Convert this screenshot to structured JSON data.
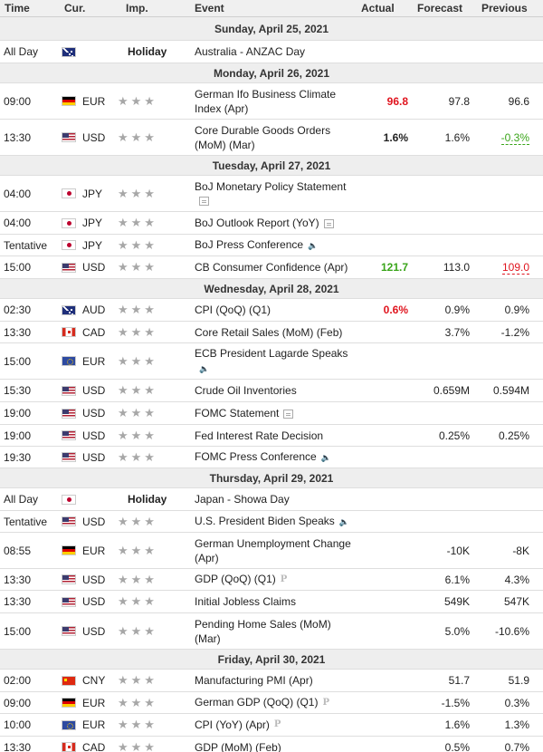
{
  "header": {
    "time": "Time",
    "currency": "Cur.",
    "importance": "Imp.",
    "event": "Event",
    "actual": "Actual",
    "forecast": "Forecast",
    "previous": "Previous"
  },
  "rows": [
    {
      "type": "day",
      "label": "Sunday, April 25, 2021",
      "h": 26
    },
    {
      "type": "event",
      "time": "All Day",
      "flag": "au",
      "cur": "",
      "holiday": "Holiday",
      "event": "Australia - ANZAC Day",
      "h": 25
    },
    {
      "type": "day",
      "label": "Monday, April 26, 2021",
      "h": 22
    },
    {
      "type": "event",
      "time": "09:00",
      "flag": "de",
      "cur": "EUR",
      "event": "German Ifo Business Climate Index (Apr)",
      "actual": "96.8",
      "actual_style": "red",
      "forecast": "97.8",
      "previous": "96.6",
      "h": 40
    },
    {
      "type": "event",
      "time": "13:30",
      "flag": "us",
      "cur": "USD",
      "event": "Core Durable Goods Orders (MoM) (Mar)",
      "actual": "1.6%",
      "forecast": "1.6%",
      "previous": "-0.3%",
      "previous_style": "u-green",
      "h": 40
    },
    {
      "type": "day",
      "label": "Tuesday, April 27, 2021",
      "h": 22
    },
    {
      "type": "event",
      "time": "04:00",
      "flag": "jp",
      "cur": "JPY",
      "event": "BoJ Monetary Policy Statement",
      "icon": "doc",
      "h": 40
    },
    {
      "type": "event",
      "time": "04:00",
      "flag": "jp",
      "cur": "JPY",
      "event": "BoJ Outlook Report (YoY)",
      "icon": "doc",
      "h": 25
    },
    {
      "type": "event",
      "time": "Tentative",
      "flag": "jp",
      "cur": "JPY",
      "event": "BoJ Press Conference",
      "icon": "speaker",
      "h": 24
    },
    {
      "type": "event",
      "time": "15:00",
      "flag": "us",
      "cur": "USD",
      "event": "CB Consumer Confidence (Apr)",
      "actual": "121.7",
      "actual_style": "green",
      "forecast": "113.0",
      "previous": "109.0",
      "previous_style": "u-red",
      "h": 25
    },
    {
      "type": "day",
      "label": "Wednesday, April 28, 2021",
      "h": 22
    },
    {
      "type": "event",
      "time": "02:30",
      "flag": "au",
      "cur": "AUD",
      "event": "CPI (QoQ) (Q1)",
      "actual": "0.6%",
      "actual_style": "red",
      "forecast": "0.9%",
      "previous": "0.9%",
      "h": 25
    },
    {
      "type": "event",
      "time": "13:30",
      "flag": "ca",
      "cur": "CAD",
      "event": "Core Retail Sales (MoM) (Feb)",
      "forecast": "3.7%",
      "previous": "-1.2%",
      "h": 24
    },
    {
      "type": "event",
      "time": "15:00",
      "flag": "eu",
      "cur": "EUR",
      "event": "ECB President Lagarde Speaks",
      "icon": "speaker",
      "h": 40
    },
    {
      "type": "event",
      "time": "15:30",
      "flag": "us",
      "cur": "USD",
      "event": "Crude Oil Inventories",
      "forecast": "0.659M",
      "previous": "0.594M",
      "h": 25
    },
    {
      "type": "event",
      "time": "19:00",
      "flag": "us",
      "cur": "USD",
      "event": "FOMC Statement",
      "icon": "doc",
      "h": 25
    },
    {
      "type": "event",
      "time": "19:00",
      "flag": "us",
      "cur": "USD",
      "event": "Fed Interest Rate Decision",
      "forecast": "0.25%",
      "previous": "0.25%",
      "h": 24
    },
    {
      "type": "event",
      "time": "19:30",
      "flag": "us",
      "cur": "USD",
      "event": "FOMC Press Conference",
      "icon": "speaker",
      "h": 24
    },
    {
      "type": "day",
      "label": "Thursday, April 29, 2021",
      "h": 22
    },
    {
      "type": "event",
      "time": "All Day",
      "flag": "jp",
      "cur": "",
      "holiday": "Holiday",
      "event": "Japan - Showa Day",
      "h": 25
    },
    {
      "type": "event",
      "time": "Tentative",
      "flag": "us",
      "cur": "USD",
      "event": "U.S. President Biden Speaks",
      "icon": "speaker",
      "h": 24
    },
    {
      "type": "event",
      "time": "08:55",
      "flag": "de",
      "cur": "EUR",
      "event": "German Unemployment Change (Apr)",
      "forecast": "-10K",
      "previous": "-8K",
      "h": 40
    },
    {
      "type": "event",
      "time": "13:30",
      "flag": "us",
      "cur": "USD",
      "event": "GDP (QoQ) (Q1)",
      "icon": "p",
      "forecast": "6.1%",
      "previous": "4.3%",
      "h": 24
    },
    {
      "type": "event",
      "time": "13:30",
      "flag": "us",
      "cur": "USD",
      "event": "Initial Jobless Claims",
      "forecast": "549K",
      "previous": "547K",
      "h": 25
    },
    {
      "type": "event",
      "time": "15:00",
      "flag": "us",
      "cur": "USD",
      "event": "Pending Home Sales (MoM) (Mar)",
      "forecast": "5.0%",
      "previous": "-10.6%",
      "h": 40
    },
    {
      "type": "day",
      "label": "Friday, April 30, 2021",
      "h": 22
    },
    {
      "type": "event",
      "time": "02:00",
      "flag": "cn",
      "cur": "CNY",
      "event": "Manufacturing PMI (Apr)",
      "forecast": "51.7",
      "previous": "51.9",
      "h": 25
    },
    {
      "type": "event",
      "time": "09:00",
      "flag": "de",
      "cur": "EUR",
      "event": "German GDP (QoQ) (Q1)",
      "icon": "p",
      "forecast": "-1.5%",
      "previous": "0.3%",
      "h": 24
    },
    {
      "type": "event",
      "time": "10:00",
      "flag": "eu",
      "cur": "EUR",
      "event": "CPI (YoY) (Apr)",
      "icon": "p",
      "forecast": "1.6%",
      "previous": "1.3%",
      "h": 25
    },
    {
      "type": "event",
      "time": "13:30",
      "flag": "ca",
      "cur": "CAD",
      "event": "GDP (MoM) (Feb)",
      "forecast": "0.5%",
      "previous": "0.7%",
      "h": 24
    }
  ],
  "stars": "★★★"
}
